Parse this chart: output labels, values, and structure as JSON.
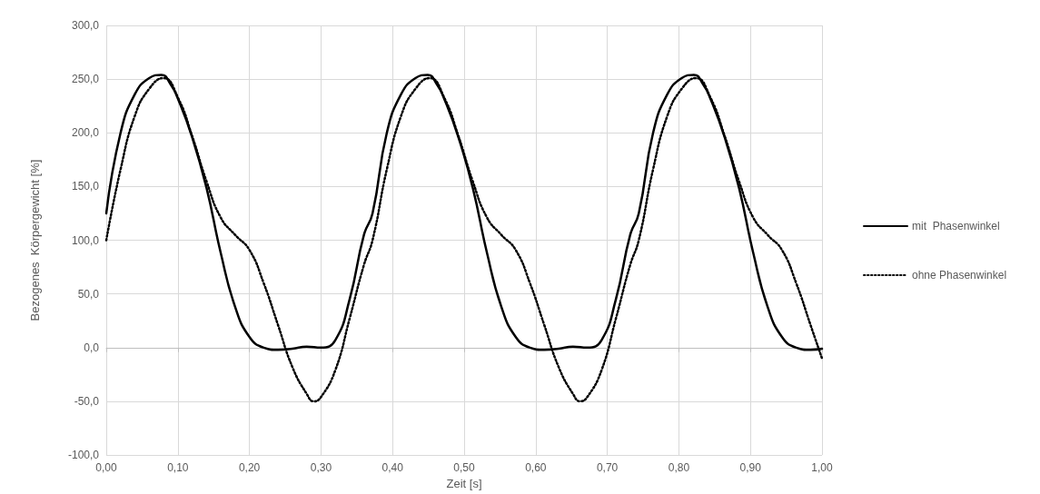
{
  "chart_data": {
    "type": "line",
    "xlabel": "Zeit [s]",
    "ylabel": "Bezogenes  Körpergewicht [%]",
    "xlim": [
      0,
      1
    ],
    "ylim": [
      -100,
      300
    ],
    "xticks": [
      {
        "value": 0,
        "label": "0,00"
      },
      {
        "value": 0.1,
        "label": "0,10"
      },
      {
        "value": 0.2,
        "label": "0,20"
      },
      {
        "value": 0.3,
        "label": "0,30"
      },
      {
        "value": 0.4,
        "label": "0,40"
      },
      {
        "value": 0.5,
        "label": "0,50"
      },
      {
        "value": 0.6,
        "label": "0,60"
      },
      {
        "value": 0.7,
        "label": "0,70"
      },
      {
        "value": 0.8,
        "label": "0,80"
      },
      {
        "value": 0.9,
        "label": "0,90"
      },
      {
        "value": 1,
        "label": "1,00"
      }
    ],
    "yticks": [
      {
        "value": -100,
        "label": "-100,0"
      },
      {
        "value": -50,
        "label": "-50,0"
      },
      {
        "value": 0,
        "label": "0,0"
      },
      {
        "value": 50,
        "label": "50,0"
      },
      {
        "value": 100,
        "label": "100,0"
      },
      {
        "value": 150,
        "label": "150,0"
      },
      {
        "value": 200,
        "label": "200,0"
      },
      {
        "value": 250,
        "label": "250,0"
      },
      {
        "value": 300,
        "label": "300,0"
      }
    ],
    "grid": true,
    "legend": "right",
    "marker": "none",
    "series": [
      {
        "name": "mit  Phasenwinkel",
        "color": "#000000",
        "line_style": "solid",
        "x": [
          0,
          0.02,
          0.04,
          0.06,
          0.077,
          0.09,
          0.1,
          0.12,
          0.14,
          0.16,
          0.18,
          0.2,
          0.22,
          0.24,
          0.26,
          0.28,
          0.3,
          0.32,
          0.34,
          0.36,
          0.372,
          0.392,
          0.412,
          0.432,
          0.449,
          0.462,
          0.472,
          0.492,
          0.512,
          0.532,
          0.552,
          0.572,
          0.592,
          0.612,
          0.632,
          0.652,
          0.672,
          0.692,
          0.712,
          0.732,
          0.744,
          0.764,
          0.784,
          0.804,
          0.821,
          0.834,
          0.844,
          0.864,
          0.884,
          0.904,
          0.924,
          0.944,
          0.964,
          0.984,
          1
        ],
        "values": [
          125,
          200,
          236,
          251,
          254,
          245,
          232,
          196,
          149,
          88,
          38,
          10,
          0,
          -2,
          -1,
          1,
          0,
          7,
          45,
          105,
          125,
          200,
          236,
          251,
          254,
          245,
          232,
          196,
          149,
          88,
          38,
          10,
          0,
          -2,
          -1,
          1,
          0,
          7,
          45,
          105,
          125,
          200,
          236,
          251,
          254,
          245,
          232,
          196,
          149,
          88,
          38,
          10,
          0,
          -2,
          -1
        ]
      },
      {
        "name": "ohne Phasenwinkel",
        "color": "#000000",
        "line_style": "dotted",
        "x": [
          0,
          0.02,
          0.04,
          0.06,
          0.08,
          0.1,
          0.12,
          0.14,
          0.16,
          0.18,
          0.2,
          0.22,
          0.24,
          0.26,
          0.28,
          0.29,
          0.3,
          0.32,
          0.34,
          0.36,
          0.372,
          0.392,
          0.412,
          0.432,
          0.452,
          0.472,
          0.492,
          0.512,
          0.532,
          0.552,
          0.572,
          0.592,
          0.612,
          0.632,
          0.652,
          0.662,
          0.672,
          0.692,
          0.712,
          0.732,
          0.744,
          0.764,
          0.784,
          0.804,
          0.824,
          0.844,
          0.864,
          0.884,
          0.904,
          0.924,
          0.944,
          0.964,
          0.984,
          1
        ],
        "values": [
          100,
          166,
          216,
          241,
          251,
          233,
          197,
          155,
          121,
          105,
          91,
          60,
          21,
          -18,
          -43,
          -50,
          -46,
          -21,
          27,
          77,
          100,
          166,
          216,
          241,
          251,
          233,
          197,
          155,
          121,
          105,
          91,
          60,
          21,
          -18,
          -43,
          -50,
          -46,
          -21,
          27,
          77,
          100,
          166,
          216,
          241,
          251,
          233,
          197,
          155,
          121,
          105,
          91,
          60,
          21,
          -10
        ]
      }
    ]
  }
}
